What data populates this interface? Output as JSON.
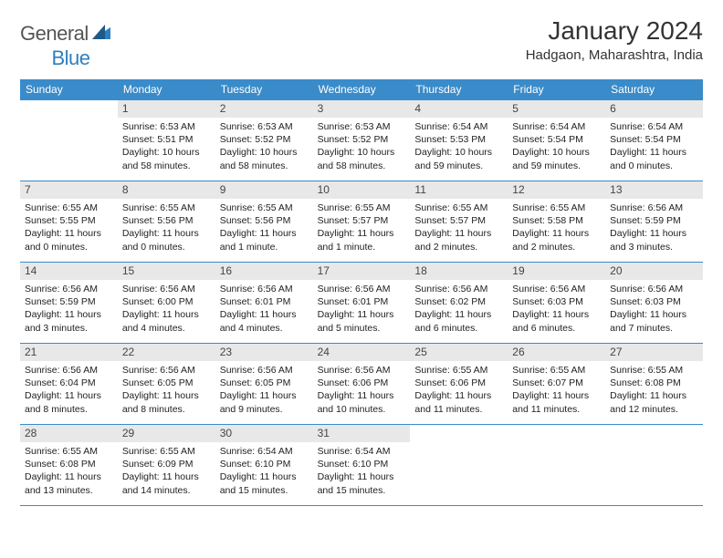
{
  "brand": {
    "part1": "General",
    "part2": "Blue"
  },
  "title": "January 2024",
  "location": "Hadgaon, Maharashtra, India",
  "colors": {
    "header_bg": "#3a8bc9",
    "header_text": "#ffffff",
    "date_bg": "#e8e8e8",
    "date_text": "#444444",
    "body_text": "#222222",
    "rule": "#3a8bc9",
    "brand_gray": "#555555",
    "brand_blue": "#2f7fbf"
  },
  "day_names": [
    "Sunday",
    "Monday",
    "Tuesday",
    "Wednesday",
    "Thursday",
    "Friday",
    "Saturday"
  ],
  "weeks": [
    [
      {
        "date": "",
        "sunrise": "",
        "sunset": "",
        "daylight": ""
      },
      {
        "date": "1",
        "sunrise": "Sunrise: 6:53 AM",
        "sunset": "Sunset: 5:51 PM",
        "daylight": "Daylight: 10 hours and 58 minutes."
      },
      {
        "date": "2",
        "sunrise": "Sunrise: 6:53 AM",
        "sunset": "Sunset: 5:52 PM",
        "daylight": "Daylight: 10 hours and 58 minutes."
      },
      {
        "date": "3",
        "sunrise": "Sunrise: 6:53 AM",
        "sunset": "Sunset: 5:52 PM",
        "daylight": "Daylight: 10 hours and 58 minutes."
      },
      {
        "date": "4",
        "sunrise": "Sunrise: 6:54 AM",
        "sunset": "Sunset: 5:53 PM",
        "daylight": "Daylight: 10 hours and 59 minutes."
      },
      {
        "date": "5",
        "sunrise": "Sunrise: 6:54 AM",
        "sunset": "Sunset: 5:54 PM",
        "daylight": "Daylight: 10 hours and 59 minutes."
      },
      {
        "date": "6",
        "sunrise": "Sunrise: 6:54 AM",
        "sunset": "Sunset: 5:54 PM",
        "daylight": "Daylight: 11 hours and 0 minutes."
      }
    ],
    [
      {
        "date": "7",
        "sunrise": "Sunrise: 6:55 AM",
        "sunset": "Sunset: 5:55 PM",
        "daylight": "Daylight: 11 hours and 0 minutes."
      },
      {
        "date": "8",
        "sunrise": "Sunrise: 6:55 AM",
        "sunset": "Sunset: 5:56 PM",
        "daylight": "Daylight: 11 hours and 0 minutes."
      },
      {
        "date": "9",
        "sunrise": "Sunrise: 6:55 AM",
        "sunset": "Sunset: 5:56 PM",
        "daylight": "Daylight: 11 hours and 1 minute."
      },
      {
        "date": "10",
        "sunrise": "Sunrise: 6:55 AM",
        "sunset": "Sunset: 5:57 PM",
        "daylight": "Daylight: 11 hours and 1 minute."
      },
      {
        "date": "11",
        "sunrise": "Sunrise: 6:55 AM",
        "sunset": "Sunset: 5:57 PM",
        "daylight": "Daylight: 11 hours and 2 minutes."
      },
      {
        "date": "12",
        "sunrise": "Sunrise: 6:55 AM",
        "sunset": "Sunset: 5:58 PM",
        "daylight": "Daylight: 11 hours and 2 minutes."
      },
      {
        "date": "13",
        "sunrise": "Sunrise: 6:56 AM",
        "sunset": "Sunset: 5:59 PM",
        "daylight": "Daylight: 11 hours and 3 minutes."
      }
    ],
    [
      {
        "date": "14",
        "sunrise": "Sunrise: 6:56 AM",
        "sunset": "Sunset: 5:59 PM",
        "daylight": "Daylight: 11 hours and 3 minutes."
      },
      {
        "date": "15",
        "sunrise": "Sunrise: 6:56 AM",
        "sunset": "Sunset: 6:00 PM",
        "daylight": "Daylight: 11 hours and 4 minutes."
      },
      {
        "date": "16",
        "sunrise": "Sunrise: 6:56 AM",
        "sunset": "Sunset: 6:01 PM",
        "daylight": "Daylight: 11 hours and 4 minutes."
      },
      {
        "date": "17",
        "sunrise": "Sunrise: 6:56 AM",
        "sunset": "Sunset: 6:01 PM",
        "daylight": "Daylight: 11 hours and 5 minutes."
      },
      {
        "date": "18",
        "sunrise": "Sunrise: 6:56 AM",
        "sunset": "Sunset: 6:02 PM",
        "daylight": "Daylight: 11 hours and 6 minutes."
      },
      {
        "date": "19",
        "sunrise": "Sunrise: 6:56 AM",
        "sunset": "Sunset: 6:03 PM",
        "daylight": "Daylight: 11 hours and 6 minutes."
      },
      {
        "date": "20",
        "sunrise": "Sunrise: 6:56 AM",
        "sunset": "Sunset: 6:03 PM",
        "daylight": "Daylight: 11 hours and 7 minutes."
      }
    ],
    [
      {
        "date": "21",
        "sunrise": "Sunrise: 6:56 AM",
        "sunset": "Sunset: 6:04 PM",
        "daylight": "Daylight: 11 hours and 8 minutes."
      },
      {
        "date": "22",
        "sunrise": "Sunrise: 6:56 AM",
        "sunset": "Sunset: 6:05 PM",
        "daylight": "Daylight: 11 hours and 8 minutes."
      },
      {
        "date": "23",
        "sunrise": "Sunrise: 6:56 AM",
        "sunset": "Sunset: 6:05 PM",
        "daylight": "Daylight: 11 hours and 9 minutes."
      },
      {
        "date": "24",
        "sunrise": "Sunrise: 6:56 AM",
        "sunset": "Sunset: 6:06 PM",
        "daylight": "Daylight: 11 hours and 10 minutes."
      },
      {
        "date": "25",
        "sunrise": "Sunrise: 6:55 AM",
        "sunset": "Sunset: 6:06 PM",
        "daylight": "Daylight: 11 hours and 11 minutes."
      },
      {
        "date": "26",
        "sunrise": "Sunrise: 6:55 AM",
        "sunset": "Sunset: 6:07 PM",
        "daylight": "Daylight: 11 hours and 11 minutes."
      },
      {
        "date": "27",
        "sunrise": "Sunrise: 6:55 AM",
        "sunset": "Sunset: 6:08 PM",
        "daylight": "Daylight: 11 hours and 12 minutes."
      }
    ],
    [
      {
        "date": "28",
        "sunrise": "Sunrise: 6:55 AM",
        "sunset": "Sunset: 6:08 PM",
        "daylight": "Daylight: 11 hours and 13 minutes."
      },
      {
        "date": "29",
        "sunrise": "Sunrise: 6:55 AM",
        "sunset": "Sunset: 6:09 PM",
        "daylight": "Daylight: 11 hours and 14 minutes."
      },
      {
        "date": "30",
        "sunrise": "Sunrise: 6:54 AM",
        "sunset": "Sunset: 6:10 PM",
        "daylight": "Daylight: 11 hours and 15 minutes."
      },
      {
        "date": "31",
        "sunrise": "Sunrise: 6:54 AM",
        "sunset": "Sunset: 6:10 PM",
        "daylight": "Daylight: 11 hours and 15 minutes."
      },
      {
        "date": "",
        "sunrise": "",
        "sunset": "",
        "daylight": ""
      },
      {
        "date": "",
        "sunrise": "",
        "sunset": "",
        "daylight": ""
      },
      {
        "date": "",
        "sunrise": "",
        "sunset": "",
        "daylight": ""
      }
    ]
  ]
}
